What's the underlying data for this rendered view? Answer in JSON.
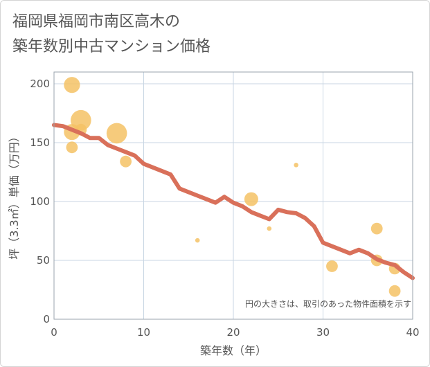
{
  "title_lines": [
    "福岡県福岡市南区高木の",
    "築年数別中古マンション価格"
  ],
  "colors": {
    "bubble": "#f5c265",
    "line": "#d9705a",
    "grid": "#c8d6e3",
    "plot_border": "#9aa3ad",
    "text": "#555555"
  },
  "chart_data": {
    "type": "scatter",
    "xlabel": "築年数（年）",
    "ylabel": "坪（3.3㎡）単価（万円）",
    "xlim": [
      0,
      40
    ],
    "ylim": [
      0,
      210
    ],
    "xticks": [
      0,
      10,
      20,
      30,
      40
    ],
    "yticks": [
      0,
      50,
      100,
      150,
      200
    ],
    "grid": true,
    "note": "円の大きさは、取引のあった物件面積を示す",
    "bubbles": [
      {
        "x": 2,
        "y": 199,
        "size": 3
      },
      {
        "x": 2,
        "y": 159,
        "size": 3
      },
      {
        "x": 2,
        "y": 146,
        "size": 2
      },
      {
        "x": 3,
        "y": 169,
        "size": 4
      },
      {
        "x": 3,
        "y": 161,
        "size": 2
      },
      {
        "x": 7,
        "y": 158,
        "size": 4
      },
      {
        "x": 8,
        "y": 134,
        "size": 2
      },
      {
        "x": 16,
        "y": 67,
        "size": 0.4
      },
      {
        "x": 22,
        "y": 102,
        "size": 2.5
      },
      {
        "x": 24,
        "y": 77,
        "size": 0.4
      },
      {
        "x": 27,
        "y": 131,
        "size": 0.4
      },
      {
        "x": 31,
        "y": 45,
        "size": 2
      },
      {
        "x": 36,
        "y": 77,
        "size": 2
      },
      {
        "x": 36,
        "y": 50,
        "size": 2
      },
      {
        "x": 38,
        "y": 43,
        "size": 2
      },
      {
        "x": 38,
        "y": 24,
        "size": 2
      }
    ],
    "trend": {
      "x": [
        0,
        1,
        2,
        3,
        4,
        5,
        6,
        7,
        8,
        9,
        10,
        11,
        12,
        13,
        14,
        15,
        16,
        17,
        18,
        19,
        20,
        21,
        22,
        23,
        24,
        25,
        26,
        27,
        28,
        29,
        30,
        31,
        32,
        33,
        34,
        35,
        36,
        37,
        38,
        39,
        40
      ],
      "y": [
        165,
        164,
        161,
        158,
        154,
        154,
        148,
        145,
        142,
        139,
        132,
        129,
        126,
        123,
        111,
        108,
        105,
        102,
        99,
        104,
        99,
        96,
        91,
        88,
        85,
        93,
        91,
        90,
        86,
        79,
        65,
        62,
        59,
        56,
        59,
        56,
        51,
        48,
        46,
        40,
        35
      ]
    }
  }
}
